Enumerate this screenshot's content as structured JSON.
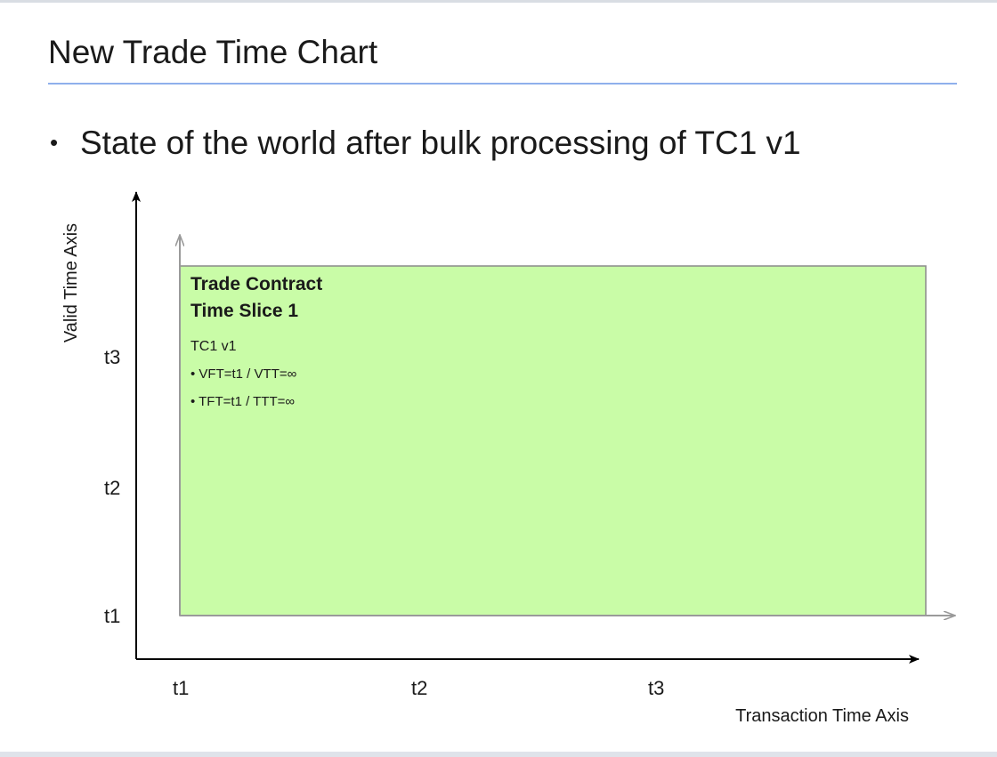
{
  "slide": {
    "title": "New Trade Time Chart",
    "bullet": "State of the world after bulk processing of TC1 v1"
  },
  "diagram": {
    "y_axis_label": "Valid Time Axis",
    "x_axis_label": "Transaction Time Axis",
    "y_ticks": [
      "t3",
      "t2",
      "t1"
    ],
    "x_ticks": [
      "t1",
      "t2",
      "t3"
    ],
    "slice": {
      "heading_line1": "Trade Contract",
      "heading_line2": "Time Slice 1",
      "version": "TC1 v1",
      "detail1": "• VFT=t1 / VTT=∞",
      "detail2": "• TFT=t1 / TTT=∞",
      "fill_color": "#c9fca7"
    }
  }
}
